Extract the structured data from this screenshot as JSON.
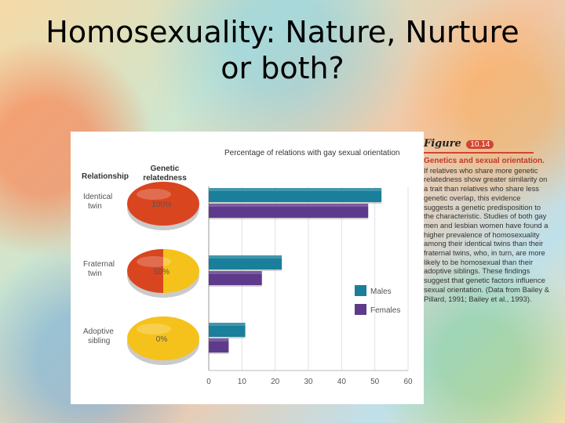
{
  "title": {
    "line1": "Homosexuality: Nature, Nurture",
    "line2": "or both?"
  },
  "figure": {
    "chart_title": "Percentage of relations with gay sexual orientation",
    "col_relationship": "Relationship",
    "col_genetic_line1": "Genetic",
    "col_genetic_line2": "relatedness",
    "rows": [
      {
        "label_line1": "Identical",
        "label_line2": "twin",
        "relatedness": "100%"
      },
      {
        "label_line1": "Fraternal",
        "label_line2": "twin",
        "relatedness": "50%"
      },
      {
        "label_line1": "Adoptive",
        "label_line2": "sibling",
        "relatedness": "0%"
      }
    ],
    "pie_colors": {
      "related": "#d9451f",
      "unrelated": "#f5c21b"
    }
  },
  "chart_data": {
    "type": "bar",
    "orientation": "horizontal",
    "title": "Percentage of relations with gay sexual orientation",
    "categories": [
      "Identical twin",
      "Fraternal twin",
      "Adoptive sibling"
    ],
    "series": [
      {
        "name": "Males",
        "values": [
          52,
          22,
          11
        ],
        "color": "#1a7f9a"
      },
      {
        "name": "Females",
        "values": [
          48,
          16,
          6
        ],
        "color": "#5e3a8c"
      }
    ],
    "xlim": [
      0,
      60
    ],
    "xticks": [
      "0",
      "10",
      "20",
      "30",
      "40",
      "50",
      "60"
    ],
    "grid": true,
    "legend_placement": "right"
  },
  "caption": {
    "figure_word": "Figure",
    "figure_number": "10.14",
    "heading": "Genetics and sexual orientation.",
    "body": "If relatives who share more genetic relatedness show greater similarity on a trait than relatives who share less genetic overlap, this evidence suggests a genetic predisposition to the characteristic. Studies of both gay men and lesbian women have found a higher prevalence of homosexuality among their identical twins than their fraternal twins, who, in turn, are more likely to be homosexual than their adoptive siblings. These findings suggest that genetic factors influence sexual orientation. (Data from Bailey & Pillard, 1991; Bailey et al., 1993)."
  }
}
